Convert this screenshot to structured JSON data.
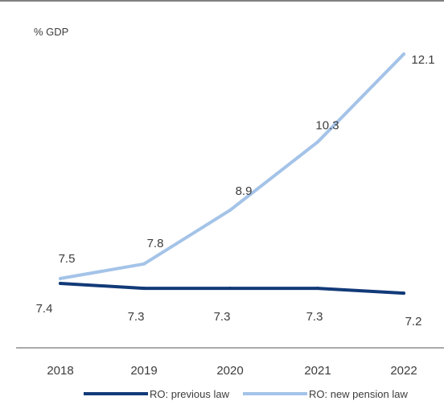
{
  "chart_data": {
    "type": "line",
    "ylabel": "% GDP",
    "categories": [
      "2018",
      "2019",
      "2020",
      "2021",
      "2022"
    ],
    "series": [
      {
        "name": "RO: previous law",
        "color": "#123a78",
        "values": [
          7.4,
          7.3,
          7.3,
          7.3,
          7.2
        ],
        "labels": [
          "7.4",
          "7.3",
          "7.3",
          "7.3",
          "7.2"
        ]
      },
      {
        "name": "RO: new pension law",
        "color": "#a4c3e8",
        "values": [
          7.5,
          7.8,
          8.9,
          10.3,
          12.1
        ],
        "labels": [
          "7.5",
          "7.8",
          "8.9",
          "10.3",
          "12.1"
        ]
      }
    ],
    "legend_position": "bottom",
    "grid": false
  }
}
